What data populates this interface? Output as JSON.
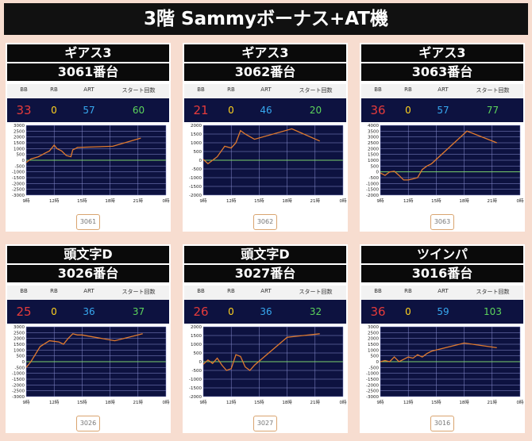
{
  "page": {
    "title": "3階 Sammyボーナス+AT機"
  },
  "stat_headers": {
    "bb": "BB",
    "rb": "RB",
    "art": "ART",
    "start": "スタート回数"
  },
  "colors": {
    "plot_bg": "#0d1240",
    "line": "#e07a2e",
    "zero_line": "#7bd36b",
    "grid": "#8a8fd0"
  },
  "panels": [
    {
      "name": "ギアス3",
      "number": "3061番台",
      "button": "3061",
      "bb": "33",
      "rb": "0",
      "art": "57",
      "start": "60"
    },
    {
      "name": "ギアス3",
      "number": "3062番台",
      "button": "3062",
      "bb": "21",
      "rb": "0",
      "art": "46",
      "start": "20"
    },
    {
      "name": "ギアス3",
      "number": "3063番台",
      "button": "3063",
      "bb": "36",
      "rb": "0",
      "art": "57",
      "start": "77"
    },
    {
      "name": "頭文字D",
      "number": "3026番台",
      "button": "3026",
      "bb": "25",
      "rb": "0",
      "art": "36",
      "start": "37"
    },
    {
      "name": "頭文字D",
      "number": "3027番台",
      "button": "3027",
      "bb": "26",
      "rb": "0",
      "art": "36",
      "start": "32"
    },
    {
      "name": "ツインパ",
      "number": "3016番台",
      "button": "3016",
      "bb": "36",
      "rb": "0",
      "art": "59",
      "start": "103"
    }
  ],
  "chart_data": [
    {
      "type": "line",
      "x_ticks": [
        "9時",
        "12時",
        "15時",
        "18時",
        "21時",
        "0時"
      ],
      "ylim": [
        -3000,
        3000
      ],
      "y_ticks": [
        3000,
        2500,
        2000,
        1500,
        1000,
        500,
        0,
        -500,
        -1000,
        -1500,
        -2000,
        -2500,
        -3000
      ],
      "series": [
        {
          "x": [
            9,
            9.5,
            10.3,
            11,
            11.5,
            12,
            12.3,
            12.8,
            13.3,
            13.8,
            14,
            14.3,
            14.5,
            18.3,
            21.3
          ],
          "values": [
            -200,
            100,
            300,
            600,
            800,
            1300,
            1000,
            800,
            400,
            300,
            900,
            1000,
            1100,
            1200,
            1900
          ]
        }
      ]
    },
    {
      "type": "line",
      "x_ticks": [
        "9時",
        "12時",
        "15時",
        "18時",
        "21時",
        "0時"
      ],
      "ylim": [
        -2000,
        2000
      ],
      "y_ticks": [
        2000,
        1500,
        1000,
        500,
        0,
        -500,
        -1000,
        -1500,
        -2000
      ],
      "series": [
        {
          "x": [
            9,
            9.5,
            10.5,
            11.3,
            12,
            12.5,
            13,
            13.5,
            14.5,
            18.5,
            21.5
          ],
          "values": [
            50,
            -200,
            200,
            800,
            700,
            1000,
            1700,
            1500,
            1200,
            1800,
            1100
          ]
        }
      ]
    },
    {
      "type": "line",
      "x_ticks": [
        "9時",
        "12時",
        "15時",
        "18時",
        "21時",
        "0時"
      ],
      "ylim": [
        -2000,
        4000
      ],
      "y_ticks": [
        4000,
        3500,
        3000,
        2500,
        2000,
        1500,
        1000,
        500,
        0,
        -500,
        -1000,
        -1500,
        -2000
      ],
      "series": [
        {
          "x": [
            9,
            9.5,
            10,
            10.5,
            11,
            11.5,
            12,
            12.5,
            13,
            13.5,
            14,
            14.5,
            18.3,
            21.5
          ],
          "values": [
            -100,
            -300,
            0,
            50,
            -300,
            -700,
            -700,
            -600,
            -500,
            200,
            500,
            700,
            3500,
            2500
          ]
        }
      ]
    },
    {
      "type": "line",
      "x_ticks": [
        "9時",
        "12時",
        "15時",
        "18時",
        "21時",
        "0時"
      ],
      "ylim": [
        -3000,
        3000
      ],
      "y_ticks": [
        3000,
        2500,
        2000,
        1500,
        1000,
        500,
        0,
        -500,
        -1000,
        -1500,
        -2000,
        -2500,
        -3000
      ],
      "series": [
        {
          "x": [
            9,
            9.5,
            10.5,
            11.5,
            12.5,
            13,
            13.5,
            14,
            14.5,
            15,
            18.5,
            21.5
          ],
          "values": [
            -500,
            0,
            1300,
            1800,
            1700,
            1500,
            2000,
            2400,
            2300,
            2300,
            1800,
            2400
          ]
        }
      ]
    },
    {
      "type": "line",
      "x_ticks": [
        "9時",
        "12時",
        "15時",
        "18時",
        "21時",
        "0時"
      ],
      "ylim": [
        -2000,
        2000
      ],
      "y_ticks": [
        2000,
        1500,
        1000,
        500,
        0,
        -500,
        -1000,
        -1500,
        -2000
      ],
      "series": [
        {
          "x": [
            9,
            9.5,
            10,
            10.5,
            11,
            11.5,
            12,
            12.5,
            13,
            13.5,
            14,
            14.5,
            18,
            21.5
          ],
          "values": [
            -150,
            100,
            -100,
            200,
            -200,
            -500,
            -400,
            400,
            300,
            -300,
            -500,
            -200,
            1400,
            1600
          ]
        }
      ]
    },
    {
      "type": "line",
      "x_ticks": [
        "9時",
        "12時",
        "15時",
        "18時",
        "21時",
        "0時"
      ],
      "ylim": [
        -3000,
        3000
      ],
      "y_ticks": [
        3000,
        2500,
        2000,
        1500,
        1000,
        500,
        0,
        -500,
        -1000,
        -1500,
        -2000,
        -2500,
        -3000
      ],
      "series": [
        {
          "x": [
            9,
            9.5,
            10,
            10.5,
            11,
            11.5,
            12,
            12.5,
            13,
            13.5,
            14,
            14.5,
            18,
            21.5
          ],
          "values": [
            0,
            100,
            0,
            400,
            0,
            200,
            400,
            300,
            600,
            400,
            700,
            900,
            1600,
            1200
          ]
        }
      ]
    }
  ]
}
